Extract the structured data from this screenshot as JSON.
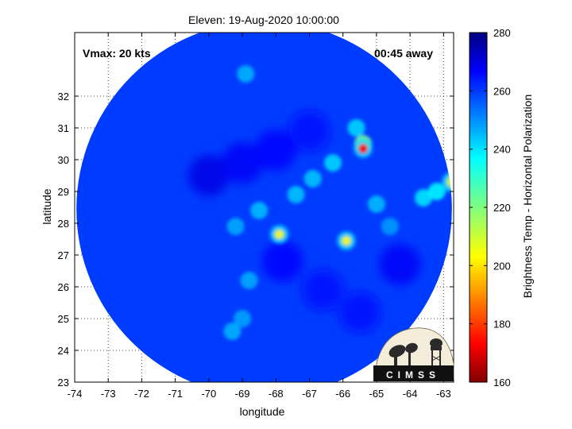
{
  "chart_data": {
    "type": "heatmap",
    "title": "Eleven: 19-Aug-2020 10:00:00",
    "annotations": {
      "vmax": "Vmax: 20 kts",
      "time_away": "00:45 away"
    },
    "xlabel": "longitude",
    "ylabel": "latitude",
    "xlim": [
      -74,
      -62.7
    ],
    "ylim": [
      23,
      34
    ],
    "x_ticks": [
      -74,
      -73,
      -72,
      -71,
      -70,
      -69,
      -68,
      -67,
      -66,
      -65,
      -64,
      -63
    ],
    "y_ticks": [
      23,
      24,
      25,
      26,
      27,
      28,
      29,
      30,
      31,
      32
    ],
    "grid": true,
    "swath": {
      "center_lon": -68.35,
      "center_lat": 28.45,
      "radius_deg": 5.6
    },
    "colorbar": {
      "label": "Brightness Temp - Horizontal Polarization",
      "range": [
        160,
        280
      ],
      "ticks": [
        160,
        180,
        200,
        220,
        240,
        260,
        280
      ],
      "colormap": "jet"
    },
    "background_value": 258,
    "features": [
      {
        "lon": -65.4,
        "lat": 30.35,
        "value": 175,
        "kind": "hot-spot"
      },
      {
        "lon": -65.4,
        "lat": 30.5,
        "value": 222,
        "kind": "convection"
      },
      {
        "lon": -67.9,
        "lat": 27.65,
        "value": 205,
        "kind": "hot-spot"
      },
      {
        "lon": -65.9,
        "lat": 27.45,
        "value": 205,
        "kind": "hot-spot"
      },
      {
        "lon": -62.75,
        "lat": 29.3,
        "value": 210,
        "kind": "edge-cell"
      },
      {
        "lon": -66.3,
        "lat": 29.9,
        "value": 240,
        "kind": "convection"
      },
      {
        "lon": -66.9,
        "lat": 29.4,
        "value": 242,
        "kind": "convection"
      },
      {
        "lon": -67.4,
        "lat": 28.9,
        "value": 242,
        "kind": "convection"
      },
      {
        "lon": -68.5,
        "lat": 28.4,
        "value": 243,
        "kind": "convection"
      },
      {
        "lon": -69.2,
        "lat": 27.9,
        "value": 245,
        "kind": "convection"
      },
      {
        "lon": -65.0,
        "lat": 28.6,
        "value": 243,
        "kind": "convection"
      },
      {
        "lon": -63.6,
        "lat": 28.8,
        "value": 238,
        "kind": "convection"
      },
      {
        "lon": -63.2,
        "lat": 29.0,
        "value": 236,
        "kind": "convection"
      },
      {
        "lon": -68.8,
        "lat": 26.2,
        "value": 245,
        "kind": "convection"
      },
      {
        "lon": -69.3,
        "lat": 24.6,
        "value": 244,
        "kind": "convection"
      },
      {
        "lon": -69.0,
        "lat": 25.0,
        "value": 246,
        "kind": "convection"
      },
      {
        "lon": -68.9,
        "lat": 32.7,
        "value": 244,
        "kind": "convection"
      },
      {
        "lon": -65.6,
        "lat": 31.0,
        "value": 240,
        "kind": "convection"
      },
      {
        "lon": -64.6,
        "lat": 27.9,
        "value": 247,
        "kind": "convection"
      }
    ],
    "dry_band": [
      {
        "lon": -70.0,
        "lat": 29.5,
        "value": 268
      },
      {
        "lon": -69.0,
        "lat": 29.9,
        "value": 266
      },
      {
        "lon": -68.0,
        "lat": 30.3,
        "value": 265
      },
      {
        "lon": -67.0,
        "lat": 30.9,
        "value": 264
      },
      {
        "lon": -67.8,
        "lat": 26.8,
        "value": 265
      },
      {
        "lon": -66.6,
        "lat": 25.9,
        "value": 264
      },
      {
        "lon": -65.5,
        "lat": 25.2,
        "value": 264
      },
      {
        "lon": -64.3,
        "lat": 26.7,
        "value": 266
      }
    ]
  },
  "logo": {
    "text": "CIMSS"
  }
}
